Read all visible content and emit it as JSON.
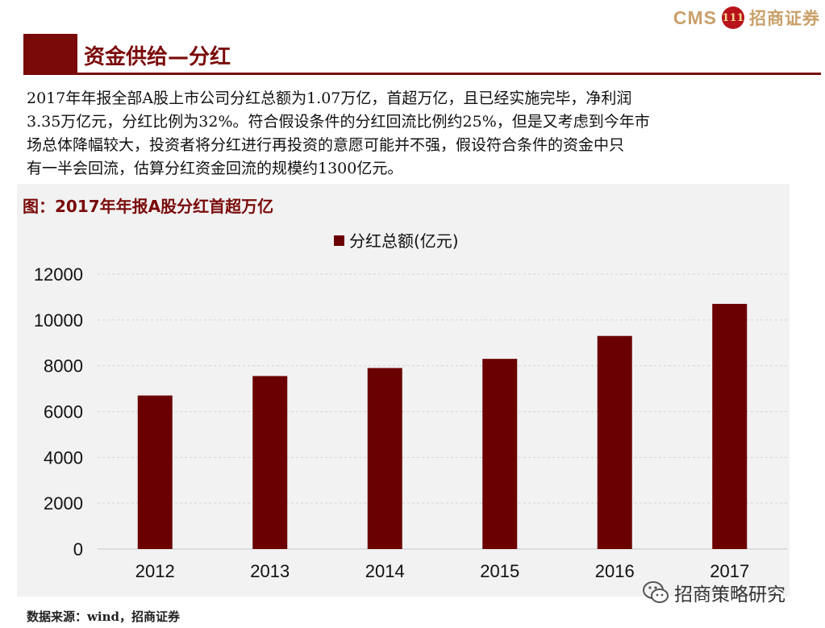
{
  "logo": {
    "brand": "CMS",
    "mark": "111",
    "name_cn": "招商证券"
  },
  "header": {
    "title": "资金供给—分红"
  },
  "body": {
    "lines": [
      "2017年年报全部A股上市公司分红总额为1.07万亿，首超万亿，且已经实施完毕，净利润",
      "3.35万亿元，分红比例为32%。符合假设条件的分红回流比例约25%，但是又考虑到今年市",
      "场总体降幅较大，投资者将分红进行再投资的意愿可能并不强，假设符合条件的资金中只",
      "有一半会回流，估算分红资金回流的规模约1300亿元。"
    ]
  },
  "colors": {
    "accent": "#7a0a0a",
    "bar": "#6b0000",
    "panel": "#f2f2f2"
  },
  "chart_data": {
    "type": "bar",
    "title": "图：2017年年报A股分红首超万亿",
    "categories": [
      "2012",
      "2013",
      "2014",
      "2015",
      "2016",
      "2017"
    ],
    "series": [
      {
        "name": "分红总额(亿元)",
        "values": [
          6700,
          7550,
          7900,
          8300,
          9300,
          10700
        ]
      }
    ],
    "ylim": [
      0,
      12000
    ],
    "yticks": [
      0,
      2000,
      4000,
      6000,
      8000,
      10000,
      12000
    ],
    "legend": "top-center",
    "grid": true
  },
  "watermark": {
    "icon": "wechat-icon",
    "text": "招商策略研究"
  },
  "source": {
    "text": "数据来源：wind，招商证券"
  }
}
